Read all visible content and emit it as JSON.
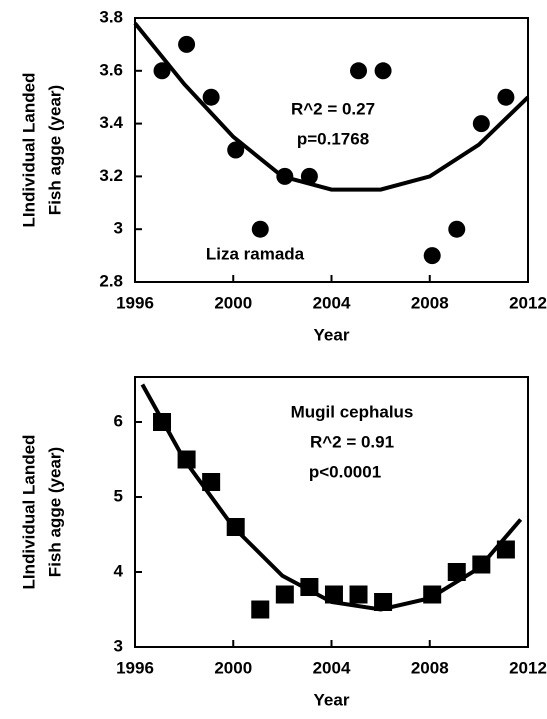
{
  "chart_data": [
    {
      "type": "scatter",
      "y_label": [
        "LIndividual Landed",
        "Fish agge (year)"
      ],
      "x_label": "Year",
      "annotations": [
        "R^2 = 0.27",
        "p=0.1768",
        "Liza ramada"
      ],
      "xlim": [
        1996,
        2012
      ],
      "xticks": [
        1996,
        2000,
        2004,
        2008,
        2012
      ],
      "ylim": [
        2.8,
        3.8
      ],
      "yticks": [
        2.8,
        3,
        3.2,
        3.4,
        3.6,
        3.8
      ],
      "grid": false,
      "series": [
        {
          "marker": "circle",
          "color": "#000000",
          "x": [
            1997.1,
            1998.1,
            1999.1,
            2000.1,
            2001.1,
            2002.1,
            2003.1,
            2005.1,
            2006.1,
            2008.1,
            2009.1,
            2010.1,
            2011.1
          ],
          "values": [
            3.6,
            3.7,
            3.5,
            3.3,
            3.0,
            3.2,
            3.2,
            3.6,
            3.6,
            2.9,
            3.0,
            3.4,
            3.5
          ]
        },
        {
          "marker": "line",
          "color": "#000000",
          "x": [
            1996,
            1998,
            2000,
            2002,
            2004,
            2006,
            2008,
            2010,
            2012
          ],
          "values": [
            3.78,
            3.55,
            3.35,
            3.2,
            3.15,
            3.15,
            3.2,
            3.32,
            3.5
          ]
        }
      ]
    },
    {
      "type": "scatter",
      "y_label": [
        "LIndividual Landed",
        "Fish agge (year)"
      ],
      "x_label": "Year",
      "annotations": [
        "Mugil cephalus",
        "R^2 = 0.91",
        "p<0.0001"
      ],
      "xlim": [
        1996,
        2012
      ],
      "xticks": [
        1996,
        2000,
        2004,
        2008,
        2012
      ],
      "ylim": [
        3,
        6.6
      ],
      "yticks": [
        3,
        4,
        5,
        6
      ],
      "grid": false,
      "series": [
        {
          "marker": "square",
          "color": "#000000",
          "x": [
            1997.1,
            1998.1,
            1999.1,
            2000.1,
            2001.1,
            2002.1,
            2003.1,
            2004.1,
            2005.1,
            2006.1,
            2008.1,
            2009.1,
            2010.1,
            2011.1
          ],
          "values": [
            6.0,
            5.5,
            5.2,
            4.6,
            3.5,
            3.7,
            3.8,
            3.7,
            3.7,
            3.6,
            3.7,
            4.0,
            4.1,
            4.3
          ]
        },
        {
          "marker": "line",
          "color": "#000000",
          "x": [
            1996.3,
            1998,
            2000,
            2002,
            2004,
            2006,
            2008,
            2010,
            2011.7
          ],
          "values": [
            6.5,
            5.5,
            4.6,
            3.95,
            3.6,
            3.5,
            3.65,
            4.05,
            4.7
          ]
        }
      ]
    }
  ]
}
